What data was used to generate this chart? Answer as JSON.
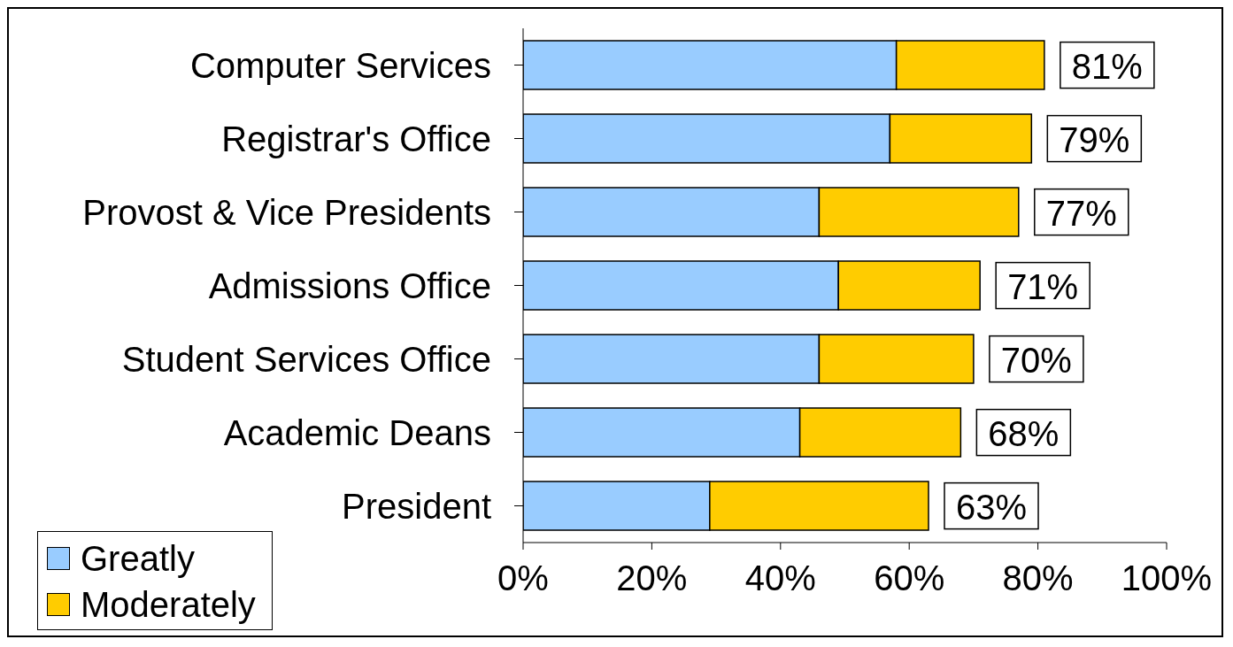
{
  "chart_data": {
    "type": "bar",
    "orientation": "horizontal",
    "stacked": true,
    "categories": [
      "Computer Services",
      "Registrar's Office",
      "Provost & Vice Presidents",
      "Admissions Office",
      "Student Services Office",
      "Academic Deans",
      "President"
    ],
    "series": [
      {
        "name": "Greatly",
        "color": "#99ccff",
        "values": [
          58,
          57,
          46,
          49,
          46,
          43,
          29
        ]
      },
      {
        "name": "Moderately",
        "color": "#ffcc00",
        "values": [
          23,
          22,
          31,
          22,
          24,
          25,
          34
        ]
      }
    ],
    "totals": [
      "81%",
      "79%",
      "77%",
      "71%",
      "70%",
      "68%",
      "63%"
    ],
    "xlim": [
      0,
      100
    ],
    "xticks": [
      {
        "value": 0,
        "label": "0%"
      },
      {
        "value": 20,
        "label": "20%"
      },
      {
        "value": 40,
        "label": "40%"
      },
      {
        "value": 60,
        "label": "60%"
      },
      {
        "value": 80,
        "label": "80%"
      },
      {
        "value": 100,
        "label": "100%"
      }
    ],
    "grid": false,
    "legend": "bottom left"
  }
}
